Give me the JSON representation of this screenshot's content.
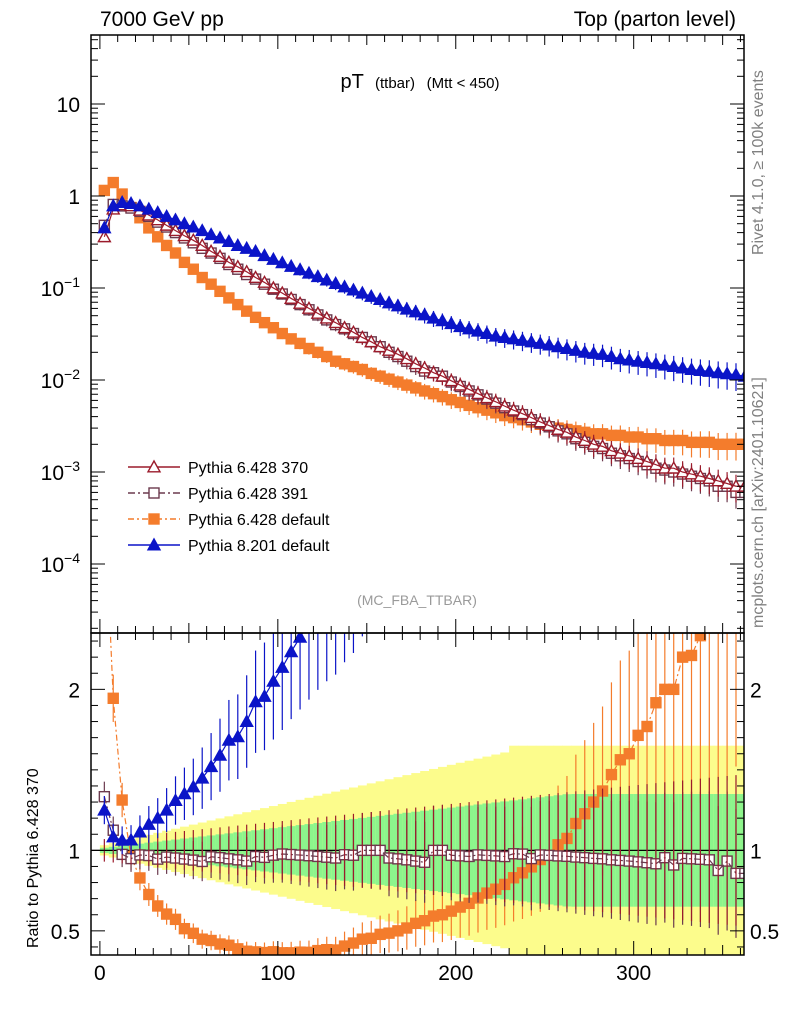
{
  "chart_data": {
    "type": "line",
    "header_left": "7000 GeV pp",
    "header_right": "Top (parton level)",
    "title_main": "pT",
    "title_sub1": "(ttbar)",
    "title_sub2": "(Mtt < 450)",
    "analysis_label": "(MC_FBA_TTBAR)",
    "side_label_top": "Rivet 4.1.0, ≥ 100k events",
    "side_label_bottom": "mcplots.cern.ch [arXiv:2401.10621]",
    "ratio_ylabel": "Ratio to Pythia 6.428 370",
    "x_range": [
      -5,
      362
    ],
    "x_ticks": [
      0,
      100,
      200,
      300
    ],
    "x_tick_labels": [
      "0",
      "100",
      "200",
      "300"
    ],
    "main_y_log_range": [
      -4.75,
      1.75
    ],
    "main_y_ticks": [
      {
        "exp": 1,
        "base": "10",
        "sup": ""
      },
      {
        "exp": 0,
        "base": "1",
        "sup": ""
      },
      {
        "exp": -1,
        "base": "10",
        "sup": "−1"
      },
      {
        "exp": -2,
        "base": "10",
        "sup": "−2"
      },
      {
        "exp": -3,
        "base": "10",
        "sup": "−3"
      },
      {
        "exp": -4,
        "base": "10",
        "sup": "−4"
      }
    ],
    "ratio_y_range": [
      0.35,
      2.35
    ],
    "ratio_y_ticks": [
      0.5,
      1,
      2
    ],
    "ratio_y_tick_labels": [
      "0.5",
      "1",
      "2"
    ],
    "bin_width": 5,
    "x_start": 0,
    "series": [
      {
        "name": "Pythia 6.428 370",
        "color": "#9b1b2b",
        "marker": "triangle-open",
        "dash": "",
        "values": [
          0.36,
          0.72,
          0.8,
          0.78,
          0.7,
          0.62,
          0.55,
          0.48,
          0.42,
          0.37,
          0.33,
          0.29,
          0.25,
          0.22,
          0.19,
          0.17,
          0.15,
          0.13,
          0.115,
          0.1,
          0.088,
          0.077,
          0.068,
          0.06,
          0.053,
          0.047,
          0.042,
          0.037,
          0.033,
          0.029,
          0.026,
          0.023,
          0.021,
          0.019,
          0.017,
          0.015,
          0.0135,
          0.012,
          0.011,
          0.0098,
          0.0088,
          0.0079,
          0.0071,
          0.0064,
          0.0058,
          0.0052,
          0.0047,
          0.0043,
          0.0039,
          0.0035,
          0.0032,
          0.0029,
          0.0027,
          0.0024,
          0.0022,
          0.002,
          0.0019,
          0.0017,
          0.0016,
          0.0015,
          0.0014,
          0.0013,
          0.0012,
          0.0011,
          0.0011,
          0.001,
          0.00095,
          0.0009,
          0.00085,
          0.0008,
          0.00075,
          0.0007,
          0.0007
        ]
      },
      {
        "name": "Pythia 6.428 391",
        "color": "#6b3a4e",
        "marker": "square-open",
        "dash": "7,3,2,3",
        "values": [
          0.48,
          0.81,
          0.78,
          0.74,
          0.68,
          0.6,
          0.52,
          0.46,
          0.4,
          0.35,
          0.31,
          0.27,
          0.24,
          0.21,
          0.18,
          0.16,
          0.14,
          0.125,
          0.11,
          0.097,
          0.086,
          0.075,
          0.066,
          0.058,
          0.051,
          0.045,
          0.04,
          0.036,
          0.032,
          0.029,
          0.026,
          0.023,
          0.02,
          0.018,
          0.016,
          0.014,
          0.0125,
          0.012,
          0.011,
          0.0095,
          0.0085,
          0.0076,
          0.0069,
          0.0062,
          0.0056,
          0.005,
          0.0046,
          0.0042,
          0.0037,
          0.0034,
          0.0031,
          0.0028,
          0.0026,
          0.0023,
          0.0021,
          0.0019,
          0.0018,
          0.0016,
          0.0015,
          0.0014,
          0.0013,
          0.0012,
          0.0011,
          0.00105,
          0.001,
          0.00095,
          0.0009,
          0.00085,
          0.0008,
          0.0007,
          0.0007,
          0.0006,
          0.0006
        ]
      },
      {
        "name": "Pythia 6.428 default",
        "color": "#f47c2c",
        "marker": "square-filled",
        "dash": "6,3,2,3",
        "values": [
          1.15,
          1.4,
          1.05,
          0.75,
          0.58,
          0.45,
          0.36,
          0.29,
          0.24,
          0.19,
          0.16,
          0.13,
          0.11,
          0.092,
          0.078,
          0.066,
          0.056,
          0.048,
          0.042,
          0.037,
          0.032,
          0.028,
          0.025,
          0.022,
          0.02,
          0.018,
          0.016,
          0.015,
          0.014,
          0.013,
          0.0118,
          0.011,
          0.0102,
          0.0095,
          0.0088,
          0.0082,
          0.0076,
          0.0071,
          0.0066,
          0.0061,
          0.0057,
          0.0053,
          0.005,
          0.0047,
          0.0044,
          0.0041,
          0.0039,
          0.0037,
          0.0035,
          0.0033,
          0.0031,
          0.003,
          0.0029,
          0.0028,
          0.0027,
          0.0026,
          0.0026,
          0.0025,
          0.0025,
          0.0024,
          0.0024,
          0.0023,
          0.0023,
          0.0022,
          0.0022,
          0.0022,
          0.0021,
          0.0021,
          0.0021,
          0.002,
          0.002,
          0.002,
          0.002
        ]
      },
      {
        "name": "Pythia 8.201 default",
        "color": "#0b14c8",
        "marker": "triangle-filled",
        "dash": "",
        "values": [
          0.45,
          0.78,
          0.85,
          0.83,
          0.78,
          0.72,
          0.66,
          0.6,
          0.55,
          0.5,
          0.46,
          0.42,
          0.38,
          0.35,
          0.32,
          0.29,
          0.27,
          0.25,
          0.225,
          0.205,
          0.188,
          0.172,
          0.158,
          0.145,
          0.133,
          0.122,
          0.112,
          0.103,
          0.095,
          0.088,
          0.081,
          0.075,
          0.069,
          0.064,
          0.059,
          0.055,
          0.051,
          0.047,
          0.044,
          0.041,
          0.038,
          0.036,
          0.034,
          0.032,
          0.03,
          0.029,
          0.028,
          0.027,
          0.026,
          0.025,
          0.024,
          0.023,
          0.022,
          0.021,
          0.02,
          0.0195,
          0.019,
          0.018,
          0.017,
          0.0165,
          0.016,
          0.0155,
          0.015,
          0.0145,
          0.014,
          0.0135,
          0.013,
          0.0127,
          0.0124,
          0.012,
          0.0117,
          0.0114,
          0.011
        ]
      }
    ],
    "ratio_band_outer_color": "#fcfc8c",
    "ratio_band_inner_color": "#8cf58c"
  }
}
